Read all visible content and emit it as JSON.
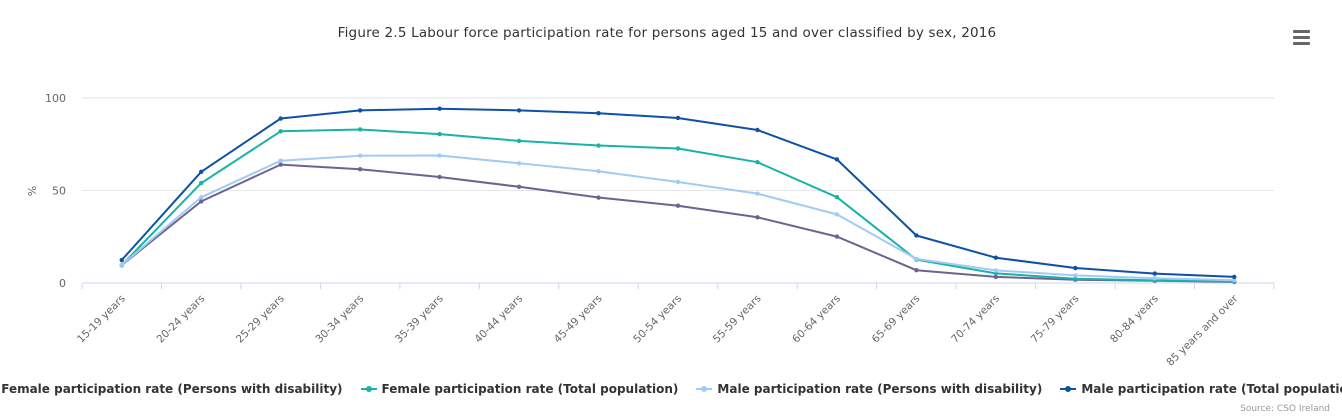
{
  "chart_data": {
    "type": "line",
    "title": "Figure 2.5 Labour force participation rate for persons aged 15 and over classified by sex, 2016",
    "ylabel": "%",
    "xlabel": "",
    "ylim": [
      0,
      100
    ],
    "yticks": [
      0,
      50,
      100
    ],
    "grid": true,
    "legend": "bottom",
    "categories": [
      "15-19 years",
      "20-24 years",
      "25-29 years",
      "30-34 years",
      "35-39 years",
      "40-44 years",
      "45-49 years",
      "50-54 years",
      "55-59 years",
      "60-64 years",
      "65-69 years",
      "70-74 years",
      "75-79 years",
      "80-84 years",
      "85 years and over"
    ],
    "series": [
      {
        "name": "Female participation rate (Persons with disability)",
        "color": "#6e6390",
        "values": [
          9.6,
          44.1,
          64.0,
          61.5,
          57.3,
          52.0,
          46.2,
          41.8,
          35.5,
          25.1,
          6.9,
          3.3,
          1.8,
          1.2,
          0.6
        ]
      },
      {
        "name": "Female participation rate (Total population)",
        "color": "#1ab2a8",
        "values": [
          9.6,
          54.0,
          82.0,
          83.0,
          80.5,
          76.8,
          74.3,
          72.7,
          65.3,
          46.4,
          12.6,
          5.2,
          2.3,
          1.4,
          0.8
        ]
      },
      {
        "name": "Male participation rate (Persons with disability)",
        "color": "#a1cbf5",
        "values": [
          9.8,
          46.3,
          66.1,
          68.8,
          68.9,
          64.7,
          60.4,
          54.6,
          48.3,
          37.1,
          13.0,
          6.8,
          4.1,
          2.6,
          1.5
        ]
      },
      {
        "name": "Male participation rate (Total population)",
        "color": "#0e51a7",
        "values": [
          12.4,
          60.1,
          88.9,
          93.3,
          94.2,
          93.3,
          91.8,
          89.2,
          82.7,
          66.8,
          25.7,
          13.7,
          8.1,
          5.1,
          3.3
        ]
      }
    ]
  },
  "credits": "Source: CSO Ireland",
  "menu_icon": "hamburger-menu-icon"
}
